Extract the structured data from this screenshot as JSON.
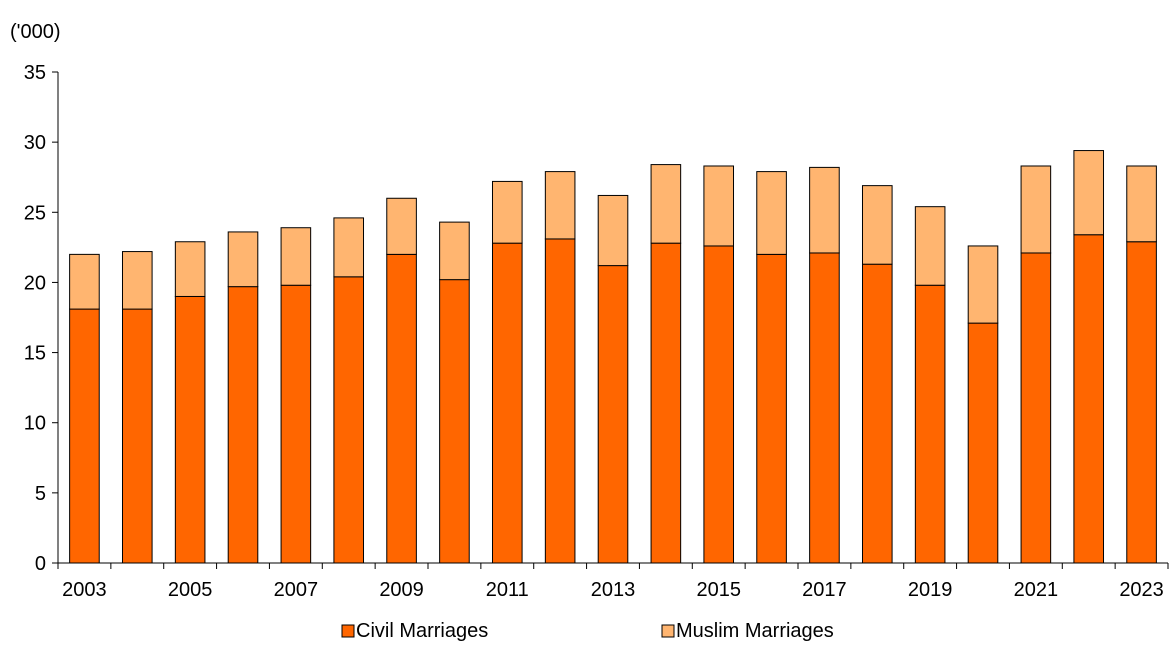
{
  "chart_data": {
    "type": "bar",
    "stacked": true,
    "title": "",
    "xlabel": "",
    "ylabel": "('000)",
    "ylim": [
      0,
      35
    ],
    "yticks": [
      "0",
      "5",
      "10",
      "15",
      "20",
      "25",
      "30",
      "35"
    ],
    "categories": [
      "2003",
      "2004",
      "2005",
      "2006",
      "2007",
      "2008",
      "2009",
      "2010",
      "2011",
      "2012",
      "2013",
      "2014",
      "2015",
      "2016",
      "2017",
      "2018",
      "2019",
      "2020",
      "2021",
      "2022",
      "2023"
    ],
    "xtick_labels": [
      "2003",
      "",
      "2005",
      "",
      "2007",
      "",
      "2009",
      "",
      "2011",
      "",
      "2013",
      "",
      "2015",
      "",
      "2017",
      "",
      "2019",
      "",
      "2021",
      "",
      "2023"
    ],
    "grid": false,
    "legend_position": "bottom",
    "series": [
      {
        "name": "Civil Marriages",
        "color": "#FF6600",
        "values": [
          18.1,
          18.1,
          19.0,
          19.7,
          19.8,
          20.4,
          22.0,
          20.2,
          22.8,
          23.1,
          21.2,
          22.8,
          22.6,
          22.0,
          22.1,
          21.3,
          19.8,
          17.1,
          22.1,
          23.4,
          22.9
        ]
      },
      {
        "name": "Muslim Marriages",
        "color": "#FFB570",
        "values": [
          3.9,
          4.1,
          3.9,
          3.9,
          4.1,
          4.2,
          4.0,
          4.1,
          4.4,
          4.8,
          5.0,
          5.6,
          5.7,
          5.9,
          6.1,
          5.6,
          5.6,
          5.5,
          6.2,
          6.0,
          5.4
        ]
      }
    ]
  }
}
